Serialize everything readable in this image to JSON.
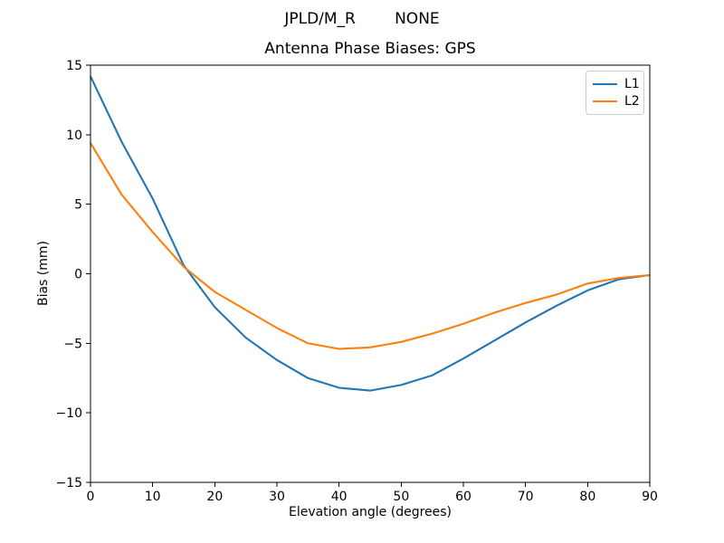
{
  "figure": {
    "suptitle": "JPLD/M_R        NONE",
    "background": "#ffffff",
    "axes_color": "#000000",
    "legend_border_color": "#cccccc"
  },
  "chart_data": {
    "type": "line",
    "title": "Antenna Phase Biases: GPS",
    "suptitle": "JPLD/M_R        NONE",
    "xlabel": "Elevation angle (degrees)",
    "ylabel": "Bias (mm)",
    "xlim": [
      0,
      90
    ],
    "ylim": [
      -15,
      15
    ],
    "xticks": [
      0,
      10,
      20,
      30,
      40,
      50,
      60,
      70,
      80,
      90
    ],
    "yticks": [
      -15,
      -10,
      -5,
      0,
      5,
      10,
      15
    ],
    "grid": false,
    "legend": {
      "position": "upper right",
      "entries": [
        "L1",
        "L2"
      ]
    },
    "x": [
      0,
      5,
      10,
      15,
      20,
      25,
      30,
      35,
      40,
      45,
      50,
      55,
      60,
      65,
      70,
      75,
      80,
      85,
      90
    ],
    "series": [
      {
        "name": "L1",
        "color": "#1f77b4",
        "values": [
          14.2,
          9.5,
          5.4,
          0.6,
          -2.4,
          -4.6,
          -6.2,
          -7.5,
          -8.2,
          -8.4,
          -8.0,
          -7.3,
          -6.1,
          -4.8,
          -3.5,
          -2.3,
          -1.2,
          -0.4,
          -0.1
        ]
      },
      {
        "name": "L2",
        "color": "#ff7f0e",
        "values": [
          9.4,
          5.7,
          3.0,
          0.5,
          -1.3,
          -2.6,
          -3.9,
          -5.0,
          -5.4,
          -5.3,
          -4.9,
          -4.3,
          -3.6,
          -2.8,
          -2.1,
          -1.5,
          -0.7,
          -0.3,
          -0.1
        ]
      }
    ]
  }
}
